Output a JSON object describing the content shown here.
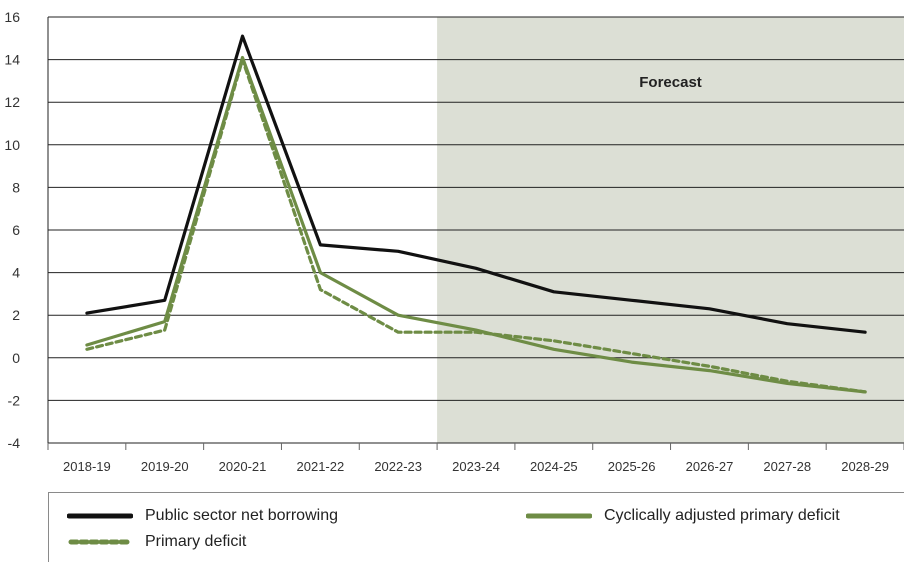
{
  "chart_data": {
    "type": "line",
    "categories": [
      "2018-19",
      "2019-20",
      "2020-21",
      "2021-22",
      "2022-23",
      "2023-24",
      "2024-25",
      "2025-26",
      "2026-27",
      "2027-28",
      "2028-29"
    ],
    "ylim": [
      -4,
      16
    ],
    "yticks": [
      -4,
      -2,
      0,
      2,
      4,
      6,
      8,
      10,
      12,
      14,
      16
    ],
    "grid": true,
    "annotation": "Forecast",
    "forecast_start_index": 4,
    "series": [
      {
        "name": "Public sector net borrowing",
        "color": "#111111",
        "style": "solid",
        "values": [
          2.1,
          2.7,
          15.1,
          5.3,
          5.0,
          4.2,
          3.1,
          2.7,
          2.3,
          1.6,
          1.2
        ]
      },
      {
        "name": "Cyclically adjusted primary deficit",
        "color": "#6e8c45",
        "style": "solid",
        "values": [
          0.6,
          1.7,
          14.1,
          4.0,
          2.0,
          1.3,
          0.4,
          -0.2,
          -0.6,
          -1.2,
          -1.6
        ]
      },
      {
        "name": "Primary deficit",
        "color": "#6e8c45",
        "style": "dashed",
        "values": [
          0.4,
          1.3,
          14.0,
          3.2,
          1.2,
          1.2,
          0.8,
          0.2,
          -0.4,
          -1.1,
          -1.6
        ]
      }
    ]
  }
}
